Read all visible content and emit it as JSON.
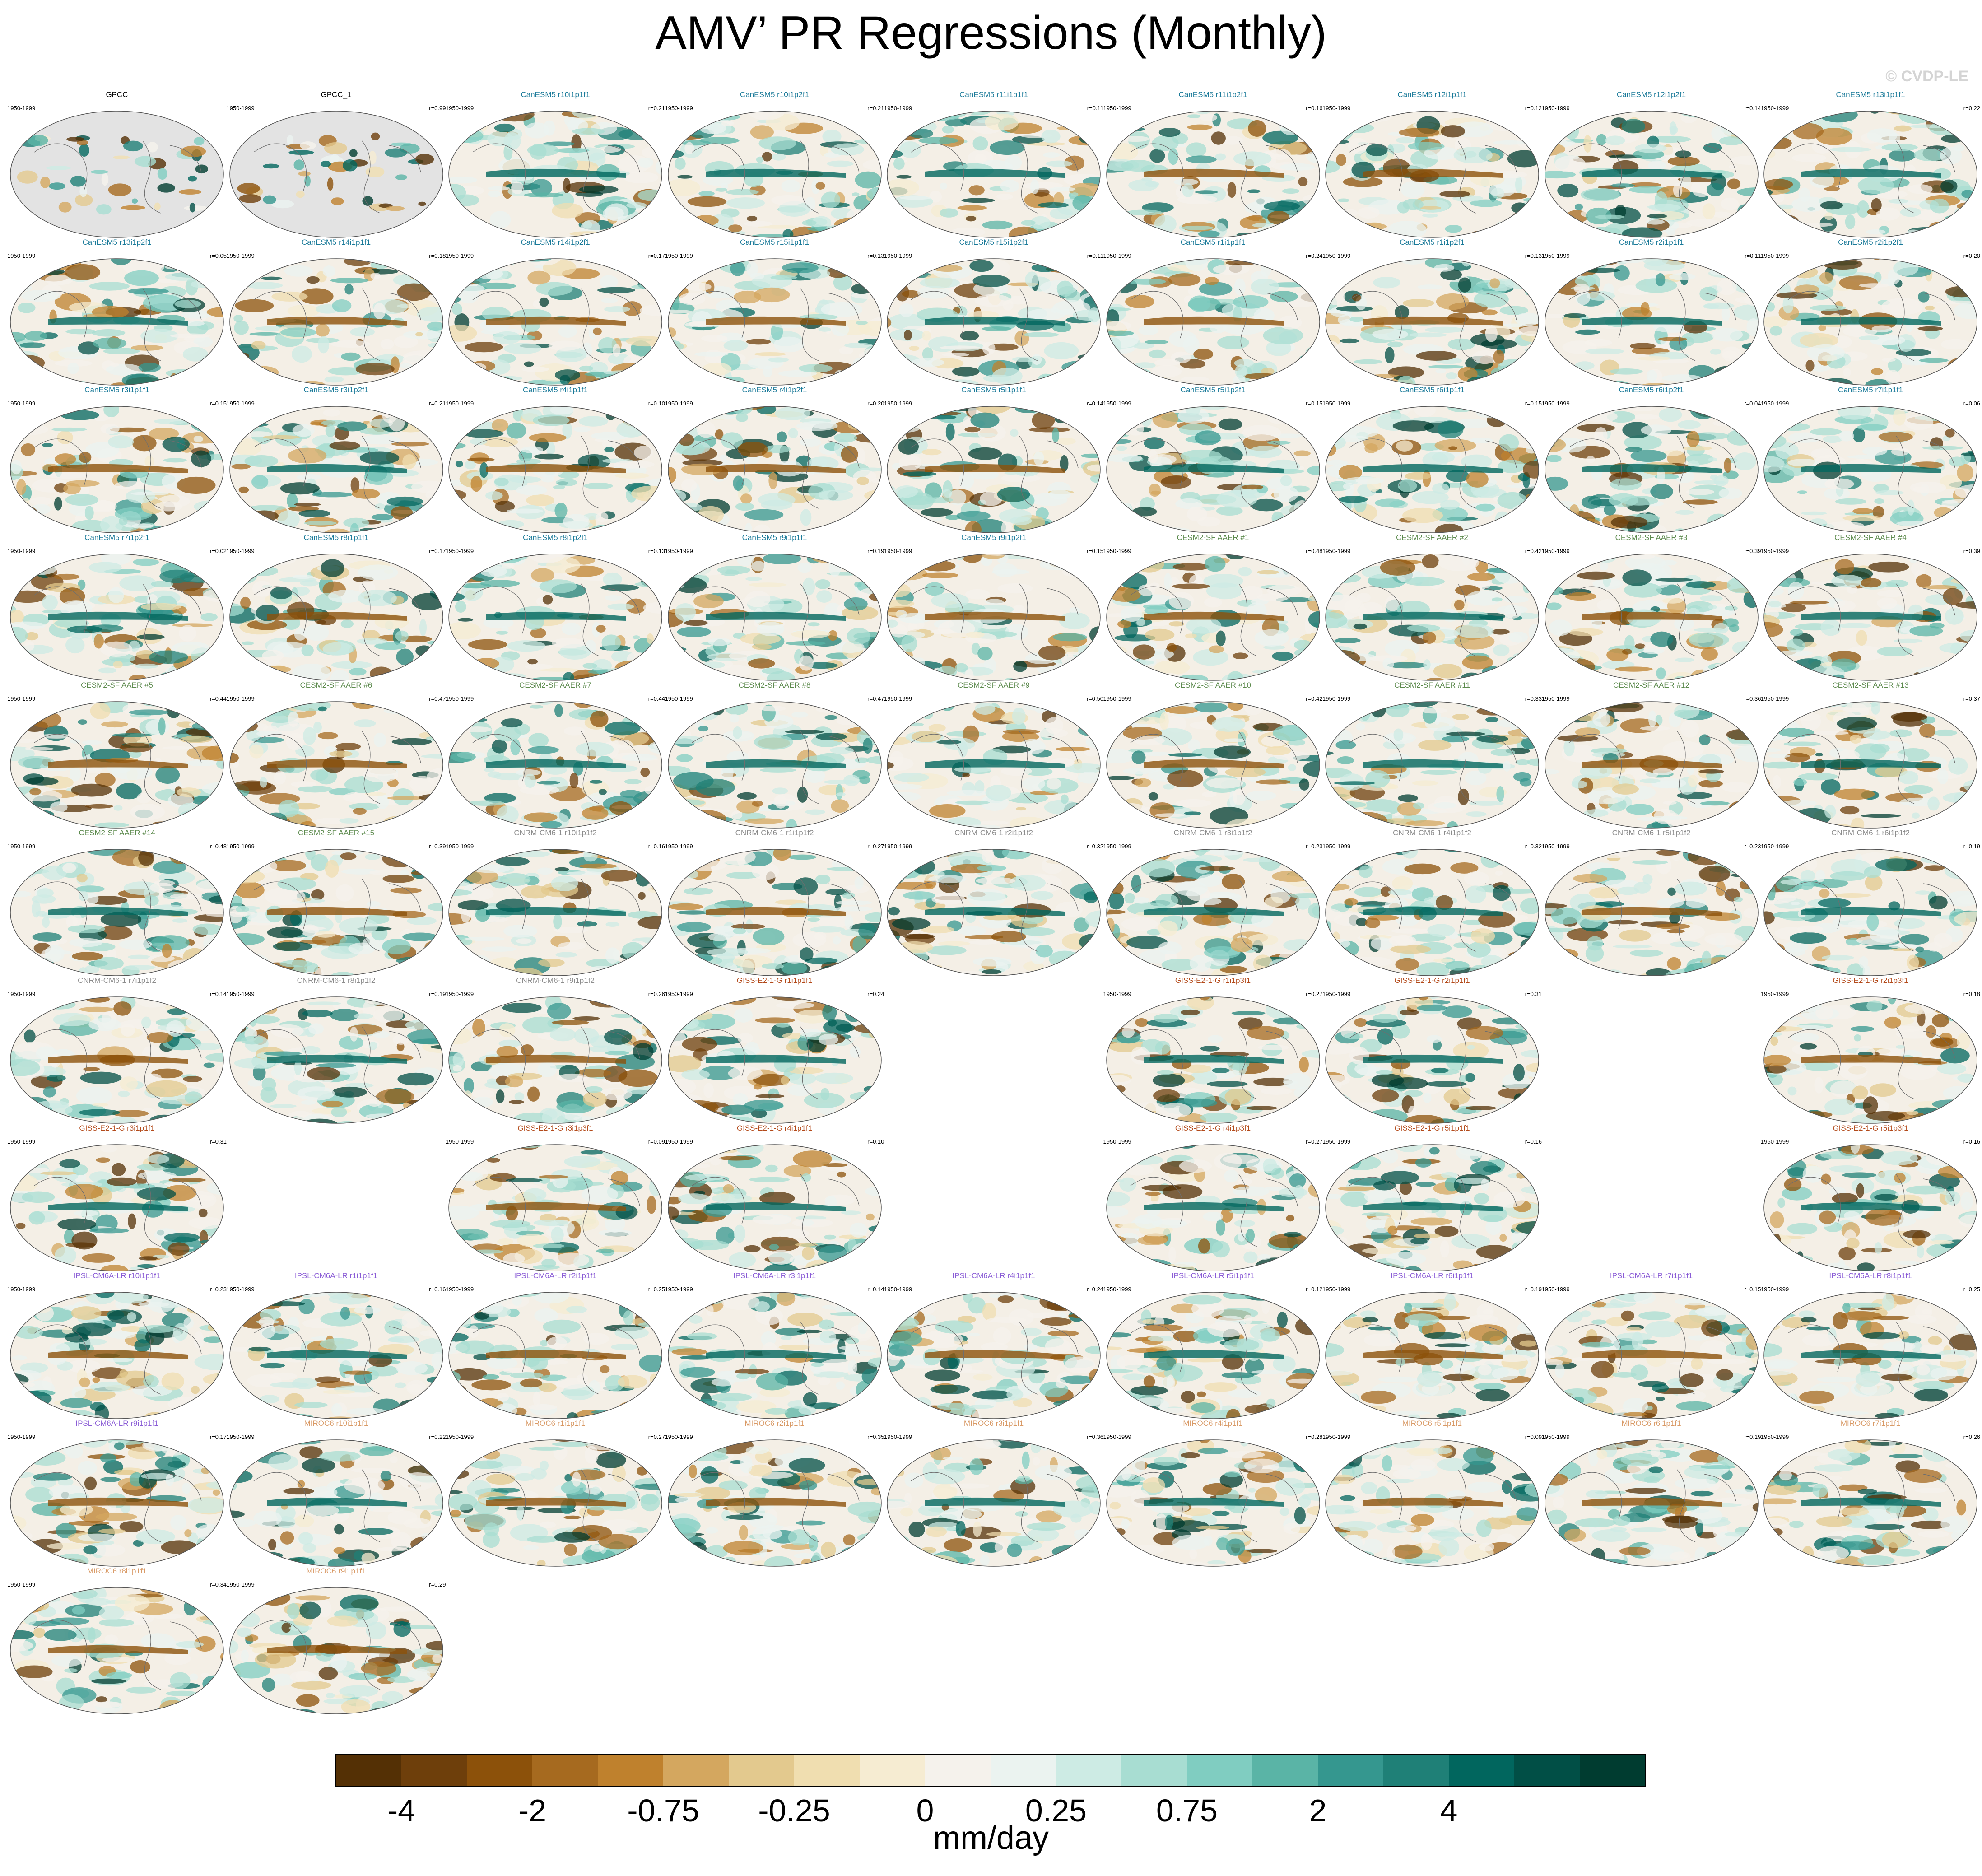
{
  "title": "AMV’ PR Regressions (Monthly)",
  "watermark": "© CVDP-LE",
  "period": "1950-1999",
  "model_colors": {
    "GPCC": "#000000",
    "CanESM5": "#1a7a99",
    "CESM2-SF AAER": "#5c8a4d",
    "CNRM-CM6-1": "#8c8c8c",
    "GISS-E2-1-G": "#b34a1a",
    "IPSL-CM6A-LR": "#8a5cd6",
    "MIROC6": "#d99a66"
  },
  "panels": [
    {
      "title": "GPCC",
      "model": "GPCC",
      "r": "",
      "obs": true
    },
    {
      "title": "GPCC_1",
      "model": "GPCC",
      "r": "r=0.99",
      "obs": true
    },
    {
      "title": "CanESM5 r10i1p1f1",
      "model": "CanESM5",
      "r": "r=0.21"
    },
    {
      "title": "CanESM5 r10i1p2f1",
      "model": "CanESM5",
      "r": "r=0.21"
    },
    {
      "title": "CanESM5 r11i1p1f1",
      "model": "CanESM5",
      "r": "r=0.11"
    },
    {
      "title": "CanESM5 r11i1p2f1",
      "model": "CanESM5",
      "r": "r=0.16"
    },
    {
      "title": "CanESM5 r12i1p1f1",
      "model": "CanESM5",
      "r": "r=0.12"
    },
    {
      "title": "CanESM5 r12i1p2f1",
      "model": "CanESM5",
      "r": "r=0.14"
    },
    {
      "title": "CanESM5 r13i1p1f1",
      "model": "CanESM5",
      "r": "r=0.22"
    },
    {
      "title": "CanESM5 r13i1p2f1",
      "model": "CanESM5",
      "r": "r=0.05"
    },
    {
      "title": "CanESM5 r14i1p1f1",
      "model": "CanESM5",
      "r": "r=0.18"
    },
    {
      "title": "CanESM5 r14i1p2f1",
      "model": "CanESM5",
      "r": "r=0.17"
    },
    {
      "title": "CanESM5 r15i1p1f1",
      "model": "CanESM5",
      "r": "r=0.13"
    },
    {
      "title": "CanESM5 r15i1p2f1",
      "model": "CanESM5",
      "r": "r=0.11"
    },
    {
      "title": "CanESM5 r1i1p1f1",
      "model": "CanESM5",
      "r": "r=0.24"
    },
    {
      "title": "CanESM5 r1i1p2f1",
      "model": "CanESM5",
      "r": "r=0.13"
    },
    {
      "title": "CanESM5 r2i1p1f1",
      "model": "CanESM5",
      "r": "r=0.11"
    },
    {
      "title": "CanESM5 r2i1p2f1",
      "model": "CanESM5",
      "r": "r=0.20"
    },
    {
      "title": "CanESM5 r3i1p1f1",
      "model": "CanESM5",
      "r": "r=0.15"
    },
    {
      "title": "CanESM5 r3i1p2f1",
      "model": "CanESM5",
      "r": "r=0.21"
    },
    {
      "title": "CanESM5 r4i1p1f1",
      "model": "CanESM5",
      "r": "r=0.10"
    },
    {
      "title": "CanESM5 r4i1p2f1",
      "model": "CanESM5",
      "r": "r=0.20"
    },
    {
      "title": "CanESM5 r5i1p1f1",
      "model": "CanESM5",
      "r": "r=0.14"
    },
    {
      "title": "CanESM5 r5i1p2f1",
      "model": "CanESM5",
      "r": "r=0.15"
    },
    {
      "title": "CanESM5 r6i1p1f1",
      "model": "CanESM5",
      "r": "r=0.15"
    },
    {
      "title": "CanESM5 r6i1p2f1",
      "model": "CanESM5",
      "r": "r=0.04"
    },
    {
      "title": "CanESM5 r7i1p1f1",
      "model": "CanESM5",
      "r": "r=0.06"
    },
    {
      "title": "CanESM5 r7i1p2f1",
      "model": "CanESM5",
      "r": "r=0.02"
    },
    {
      "title": "CanESM5 r8i1p1f1",
      "model": "CanESM5",
      "r": "r=0.17"
    },
    {
      "title": "CanESM5 r8i1p2f1",
      "model": "CanESM5",
      "r": "r=0.13"
    },
    {
      "title": "CanESM5 r9i1p1f1",
      "model": "CanESM5",
      "r": "r=0.19"
    },
    {
      "title": "CanESM5 r9i1p2f1",
      "model": "CanESM5",
      "r": "r=0.15"
    },
    {
      "title": "CESM2-SF AAER #1",
      "model": "CESM2-SF AAER",
      "r": "r=0.48"
    },
    {
      "title": "CESM2-SF AAER #2",
      "model": "CESM2-SF AAER",
      "r": "r=0.42"
    },
    {
      "title": "CESM2-SF AAER #3",
      "model": "CESM2-SF AAER",
      "r": "r=0.39"
    },
    {
      "title": "CESM2-SF AAER #4",
      "model": "CESM2-SF AAER",
      "r": "r=0.39"
    },
    {
      "title": "CESM2-SF AAER #5",
      "model": "CESM2-SF AAER",
      "r": "r=0.44"
    },
    {
      "title": "CESM2-SF AAER #6",
      "model": "CESM2-SF AAER",
      "r": "r=0.47"
    },
    {
      "title": "CESM2-SF AAER #7",
      "model": "CESM2-SF AAER",
      "r": "r=0.44"
    },
    {
      "title": "CESM2-SF AAER #8",
      "model": "CESM2-SF AAER",
      "r": "r=0.47"
    },
    {
      "title": "CESM2-SF AAER #9",
      "model": "CESM2-SF AAER",
      "r": "r=0.50"
    },
    {
      "title": "CESM2-SF AAER #10",
      "model": "CESM2-SF AAER",
      "r": "r=0.42"
    },
    {
      "title": "CESM2-SF AAER #11",
      "model": "CESM2-SF AAER",
      "r": "r=0.33"
    },
    {
      "title": "CESM2-SF AAER #12",
      "model": "CESM2-SF AAER",
      "r": "r=0.36"
    },
    {
      "title": "CESM2-SF AAER #13",
      "model": "CESM2-SF AAER",
      "r": "r=0.37"
    },
    {
      "title": "CESM2-SF AAER #14",
      "model": "CESM2-SF AAER",
      "r": "r=0.48"
    },
    {
      "title": "CESM2-SF AAER #15",
      "model": "CESM2-SF AAER",
      "r": "r=0.39"
    },
    {
      "title": "CNRM-CM6-1 r10i1p1f2",
      "model": "CNRM-CM6-1",
      "r": "r=0.16"
    },
    {
      "title": "CNRM-CM6-1 r1i1p1f2",
      "model": "CNRM-CM6-1",
      "r": "r=0.27"
    },
    {
      "title": "CNRM-CM6-1 r2i1p1f2",
      "model": "CNRM-CM6-1",
      "r": "r=0.32"
    },
    {
      "title": "CNRM-CM6-1 r3i1p1f2",
      "model": "CNRM-CM6-1",
      "r": "r=0.23"
    },
    {
      "title": "CNRM-CM6-1 r4i1p1f2",
      "model": "CNRM-CM6-1",
      "r": "r=0.32"
    },
    {
      "title": "CNRM-CM6-1 r5i1p1f2",
      "model": "CNRM-CM6-1",
      "r": "r=0.23"
    },
    {
      "title": "CNRM-CM6-1 r6i1p1f2",
      "model": "CNRM-CM6-1",
      "r": "r=0.19"
    },
    {
      "title": "CNRM-CM6-1 r7i1p1f2",
      "model": "CNRM-CM6-1",
      "r": "r=0.14"
    },
    {
      "title": "CNRM-CM6-1 r8i1p1f2",
      "model": "CNRM-CM6-1",
      "r": "r=0.19"
    },
    {
      "title": "CNRM-CM6-1 r9i1p1f2",
      "model": "CNRM-CM6-1",
      "r": "r=0.26"
    },
    {
      "title": "GISS-E2-1-G r1i1p1f1",
      "model": "GISS-E2-1-G",
      "r": "r=0.24"
    },
    null,
    {
      "title": "GISS-E2-1-G r1i1p3f1",
      "model": "GISS-E2-1-G",
      "r": "r=0.27"
    },
    {
      "title": "GISS-E2-1-G r2i1p1f1",
      "model": "GISS-E2-1-G",
      "r": "r=0.31"
    },
    null,
    {
      "title": "GISS-E2-1-G r2i1p3f1",
      "model": "GISS-E2-1-G",
      "r": "r=0.18"
    },
    {
      "title": "GISS-E2-1-G r3i1p1f1",
      "model": "GISS-E2-1-G",
      "r": "r=0.31"
    },
    null,
    {
      "title": "GISS-E2-1-G r3i1p3f1",
      "model": "GISS-E2-1-G",
      "r": "r=0.09"
    },
    {
      "title": "GISS-E2-1-G r4i1p1f1",
      "model": "GISS-E2-1-G",
      "r": "r=0.10"
    },
    null,
    {
      "title": "GISS-E2-1-G r4i1p3f1",
      "model": "GISS-E2-1-G",
      "r": "r=0.27"
    },
    {
      "title": "GISS-E2-1-G r5i1p1f1",
      "model": "GISS-E2-1-G",
      "r": "r=0.16"
    },
    null,
    {
      "title": "GISS-E2-1-G r5i1p3f1",
      "model": "GISS-E2-1-G",
      "r": "r=0.16"
    },
    {
      "title": "IPSL-CM6A-LR r10i1p1f1",
      "model": "IPSL-CM6A-LR",
      "r": "r=0.23"
    },
    {
      "title": "IPSL-CM6A-LR r1i1p1f1",
      "model": "IPSL-CM6A-LR",
      "r": "r=0.16"
    },
    {
      "title": "IPSL-CM6A-LR r2i1p1f1",
      "model": "IPSL-CM6A-LR",
      "r": "r=0.25"
    },
    {
      "title": "IPSL-CM6A-LR r3i1p1f1",
      "model": "IPSL-CM6A-LR",
      "r": "r=0.14"
    },
    {
      "title": "IPSL-CM6A-LR r4i1p1f1",
      "model": "IPSL-CM6A-LR",
      "r": "r=0.24"
    },
    {
      "title": "IPSL-CM6A-LR r5i1p1f1",
      "model": "IPSL-CM6A-LR",
      "r": "r=0.12"
    },
    {
      "title": "IPSL-CM6A-LR r6i1p1f1",
      "model": "IPSL-CM6A-LR",
      "r": "r=0.19"
    },
    {
      "title": "IPSL-CM6A-LR r7i1p1f1",
      "model": "IPSL-CM6A-LR",
      "r": "r=0.15"
    },
    {
      "title": "IPSL-CM6A-LR r8i1p1f1",
      "model": "IPSL-CM6A-LR",
      "r": "r=0.25"
    },
    {
      "title": "IPSL-CM6A-LR r9i1p1f1",
      "model": "IPSL-CM6A-LR",
      "r": "r=0.17"
    },
    {
      "title": "MIROC6 r10i1p1f1",
      "model": "MIROC6",
      "r": "r=0.22"
    },
    {
      "title": "MIROC6 r1i1p1f1",
      "model": "MIROC6",
      "r": "r=0.27"
    },
    {
      "title": "MIROC6 r2i1p1f1",
      "model": "MIROC6",
      "r": "r=0.35"
    },
    {
      "title": "MIROC6 r3i1p1f1",
      "model": "MIROC6",
      "r": "r=0.36"
    },
    {
      "title": "MIROC6 r4i1p1f1",
      "model": "MIROC6",
      "r": "r=0.28"
    },
    {
      "title": "MIROC6 r5i1p1f1",
      "model": "MIROC6",
      "r": "r=0.09"
    },
    {
      "title": "MIROC6 r6i1p1f1",
      "model": "MIROC6",
      "r": "r=0.19"
    },
    {
      "title": "MIROC6 r7i1p1f1",
      "model": "MIROC6",
      "r": "r=0.26"
    },
    {
      "title": "MIROC6 r8i1p1f1",
      "model": "MIROC6",
      "r": "r=0.34"
    },
    {
      "title": "MIROC6 r9i1p1f1",
      "model": "MIROC6",
      "r": "r=0.29"
    }
  ],
  "chart_data": {
    "type": "heatmap",
    "title": "AMV’ PR Regressions (Monthly)",
    "projection": "global map panels, one per dataset / ensemble member",
    "colorbar": {
      "units": "mm/day",
      "tick_labels": [
        "-4",
        "-2",
        "-0.75",
        "-0.25",
        "0",
        "0.25",
        "0.75",
        "2",
        "4"
      ],
      "colors": [
        "#543005",
        "#6e3f0b",
        "#8c510a",
        "#a66a1f",
        "#bf812d",
        "#d4a75f",
        "#e3c98e",
        "#f0deb0",
        "#f6ecd2",
        "#f5f2ec",
        "#ebf3f0",
        "#cdebe4",
        "#a8ddd2",
        "#80cdc1",
        "#5ab4a6",
        "#35978f",
        "#1f8077",
        "#01665e",
        "#014f46",
        "#003c30"
      ]
    }
  }
}
